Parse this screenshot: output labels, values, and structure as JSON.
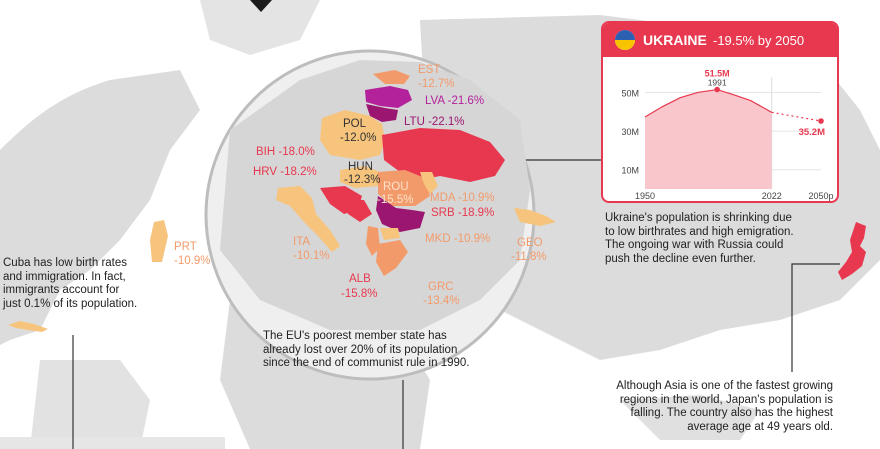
{
  "colors": {
    "deep_red": "#e8384f",
    "magenta": "#9b1670",
    "purple_light": "#b3229a",
    "orange": "#f39a6a",
    "peach": "#f6c47d",
    "map_gray": "#d9d9d9",
    "card_fill": "#f9c6cb"
  },
  "countries": [
    {
      "code": "EST",
      "value": "-12.7%",
      "color": "#f39a6a"
    },
    {
      "code": "LVA",
      "value": "-21.6%",
      "color": "#b3229a"
    },
    {
      "code": "LTU",
      "value": "-22.1%",
      "color": "#9b1670"
    },
    {
      "code": "POL",
      "value": "-12.0%",
      "color": "#f6c47d"
    },
    {
      "code": "BIH",
      "value": "-18.0%",
      "color": "#e8384f"
    },
    {
      "code": "HUN",
      "value": "-12.3%",
      "color": "#f6c47d"
    },
    {
      "code": "HRV",
      "value": "-18.2%",
      "color": "#e8384f"
    },
    {
      "code": "ROU",
      "value": "-15.5%",
      "color": "#f39a6a"
    },
    {
      "code": "MDA",
      "value": "-10.9%",
      "color": "#f6c47d"
    },
    {
      "code": "SRB",
      "value": "-18.9%",
      "color": "#e8384f"
    },
    {
      "code": "PRT",
      "value": "-10.9%",
      "color": "#f6c47d"
    },
    {
      "code": "ITA",
      "value": "-10.1%",
      "color": "#f6c47d"
    },
    {
      "code": "MKD",
      "value": "-10.9%",
      "color": "#f6c47d"
    },
    {
      "code": "GEO",
      "value": "-11.8%",
      "color": "#f6c47d"
    },
    {
      "code": "ALB",
      "value": "-15.8%",
      "color": "#f39a6a"
    },
    {
      "code": "GRC",
      "value": "-13.4%",
      "color": "#f39a6a"
    }
  ],
  "notes": {
    "cuba": [
      "Cuba has low birth rates",
      "and immigration. In fact,",
      "immigrants account for",
      "just 0.1% of its population."
    ],
    "romania": [
      "The EU's poorest member state has",
      "already  lost over 20% of its population",
      "since the end of communist rule in 1990."
    ],
    "ukraine": [
      "Ukraine's population is shrinking due",
      "to low birthrates and high emigration.",
      "The ongoing war with Russia could",
      "push the decline even further."
    ],
    "japan": [
      "Although Asia is one of the fastest growing",
      "regions in the world, Japan's population is",
      "falling. The country also has the  highest",
      "average age at 49 years old."
    ]
  },
  "ukraine_card": {
    "title": "UKRAINE",
    "subtitle": "-19.5% by 2050"
  },
  "chart_data": {
    "type": "line",
    "series": [
      {
        "values": [
          [
            1950,
            37.3
          ],
          [
            1960,
            42.7
          ],
          [
            1970,
            47.3
          ],
          [
            1980,
            50.0
          ],
          [
            1991,
            51.5
          ],
          [
            2000,
            48.9
          ],
          [
            2010,
            45.8
          ],
          [
            2022,
            39.7
          ]
        ]
      },
      {
        "values": [
          [
            2022,
            39.7
          ],
          [
            2050,
            35.2
          ]
        ]
      }
    ],
    "x_ticks": [
      "1950",
      "2022",
      "2050p"
    ],
    "x_tick_values": [
      1950,
      2022,
      2050
    ],
    "y_ticks": [
      "50M",
      "30M",
      "10M"
    ],
    "y_tick_values": [
      50,
      30,
      10
    ],
    "ylim": [
      0,
      58
    ],
    "annotations": [
      {
        "label": "51.5M",
        "sub": "1991",
        "x": 1991,
        "y": 51.5
      },
      {
        "label": "35.2M",
        "x": 2050,
        "y": 35.2
      }
    ],
    "grid": true
  }
}
